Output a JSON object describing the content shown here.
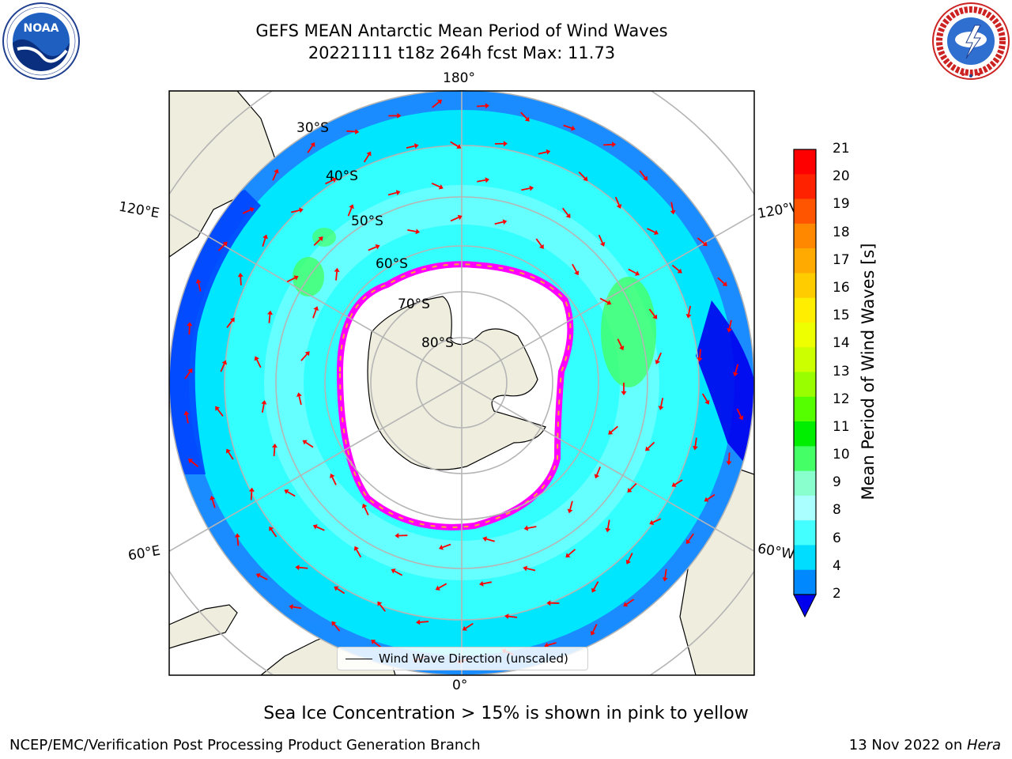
{
  "header": {
    "title_line1": "GEFS MEAN Antarctic Mean Period of Wind Waves",
    "title_line2": "20221111 t18z 264h fcst   Max: 11.73"
  },
  "map": {
    "projection": "south polar stereographic",
    "longitude_labels": {
      "top": "180°",
      "bottom": "0°",
      "upper_left": "120°E",
      "lower_left": "60°E",
      "upper_right": "120°W",
      "lower_right": "60°W"
    },
    "latitude_labels": [
      "30°S",
      "40°S",
      "50°S",
      "60°S",
      "70°S",
      "80°S"
    ],
    "legend_label": "Wind Wave Direction (unscaled)",
    "arrow_color": "#ff0000",
    "land_color": "#efedde",
    "ice_colors": [
      "#ff00ff",
      "#ff66cc",
      "#ffaa33",
      "#ffdd00"
    ]
  },
  "colorbar": {
    "label": "Mean Period of Wind Waves [s]",
    "ticks": [
      "21",
      "20",
      "19",
      "18",
      "17",
      "16",
      "15",
      "14",
      "13",
      "12",
      "11",
      "10",
      "9",
      "8",
      "6",
      "4",
      "2"
    ],
    "colors_top_to_bottom": [
      "#ff0000",
      "#ff2200",
      "#ff5500",
      "#ff8800",
      "#ffaa00",
      "#ffcc00",
      "#ffee00",
      "#eeff00",
      "#ccff00",
      "#99ff00",
      "#55ff00",
      "#00ee00",
      "#44ff66",
      "#88ffcc",
      "#aaffff",
      "#44ffff",
      "#00ddff",
      "#0088ff"
    ],
    "under_color": "#0000ee"
  },
  "notes": {
    "ice": "Sea Ice Concentration > 15% is shown in pink to yellow"
  },
  "footer": {
    "left": "NCEP/EMC/Verification Post Processing Product Generation Branch",
    "date_prefix": "13 Nov 2022 on ",
    "machine": "Hera"
  },
  "logos": {
    "left": "NOAA",
    "left_ring_text": "NATIONAL OCEANIC AND ATMOSPHERIC ADMINISTRATION · U.S. DEPARTMENT OF COMMERCE",
    "right_ring_text": "NATIONAL WEATHER SERVICE"
  }
}
